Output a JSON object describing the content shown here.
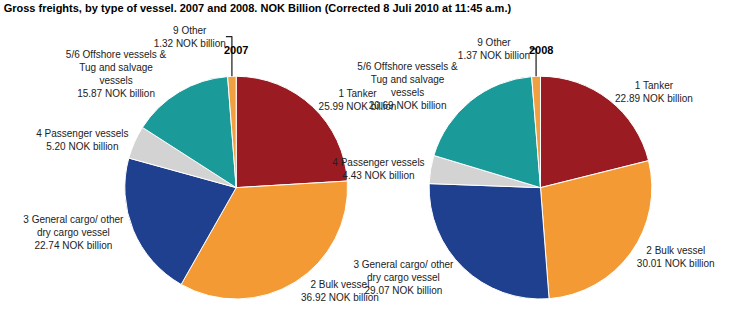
{
  "chart_data": {
    "type": "pie",
    "title": "Gross freights, by type of vessel. 2007 and 2008. NOK Billion (Corrected 8 Juli 2010 at 11:45 a.m.)",
    "categories": [
      "1 Tanker",
      "2 Bulk vessel",
      "3 General cargo/ other dry cargo vessel",
      "4 Passenger vessels",
      "5/6 Offshore vessels & Tug and salvage vessels",
      "9 Other"
    ],
    "colors": [
      "#9b1b23",
      "#f39a34",
      "#1f3f8f",
      "#d3d3d3",
      "#1b9a9a",
      "#f0a040"
    ],
    "data_labels": true,
    "legend": "none",
    "series": [
      {
        "name": "2007",
        "values": [
          25.99,
          36.92,
          22.74,
          5.2,
          15.87,
          1.32
        ],
        "value_labels": [
          "25.99 NOK billion",
          "36.92 NOK billion",
          "22.74 NOK billion",
          "5.20 NOK billion",
          "15.87 NOK billion",
          "1.32 NOK billion"
        ]
      },
      {
        "name": "2008",
        "values": [
          22.89,
          30.01,
          29.07,
          4.43,
          20.69,
          1.37
        ],
        "value_labels": [
          "22.89 NOK billion",
          "30.01 NOK billion",
          "29.07 NOK billion",
          "4.43 NOK billion",
          "20.69 NOK billion",
          "1.37 NOK billion"
        ]
      }
    ]
  }
}
